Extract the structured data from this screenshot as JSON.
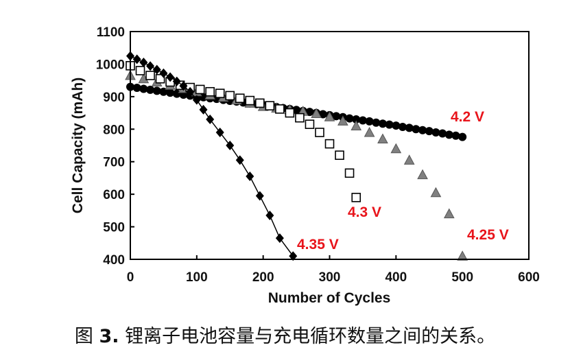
{
  "chart_data": {
    "type": "scatter",
    "xlabel": "Number of Cycles",
    "ylabel": "Cell Capacity (mAh)",
    "xlim": [
      0,
      600
    ],
    "ylim": [
      400,
      1100
    ],
    "xticks": [
      0,
      100,
      200,
      300,
      400,
      500,
      600
    ],
    "yticks": [
      400,
      500,
      600,
      700,
      800,
      900,
      1000,
      1100
    ],
    "grid": false,
    "series": [
      {
        "name": "4.2 V",
        "marker": "circle-filled",
        "color": "#000000",
        "line": false,
        "x": [
          0,
          10,
          20,
          30,
          40,
          50,
          60,
          70,
          80,
          90,
          100,
          110,
          120,
          130,
          140,
          150,
          160,
          170,
          180,
          190,
          200,
          210,
          220,
          230,
          240,
          250,
          260,
          270,
          280,
          290,
          300,
          310,
          320,
          330,
          340,
          350,
          360,
          370,
          380,
          390,
          400,
          410,
          420,
          430,
          440,
          450,
          460,
          470,
          480,
          490,
          500
        ],
        "y": [
          930,
          927,
          924,
          921,
          918,
          915,
          912,
          909,
          906,
          903,
          900,
          898,
          895,
          893,
          890,
          887,
          885,
          882,
          879,
          877,
          874,
          871,
          868,
          865,
          862,
          859,
          856,
          853,
          850,
          846,
          843,
          840,
          837,
          833,
          830,
          827,
          824,
          820,
          817,
          814,
          811,
          807,
          804,
          800,
          797,
          794,
          790,
          787,
          783,
          780,
          776
        ]
      },
      {
        "name": "4.25 V",
        "marker": "triangle-filled",
        "color": "#808080",
        "line": false,
        "x": [
          0,
          20,
          40,
          60,
          80,
          100,
          120,
          140,
          160,
          180,
          200,
          220,
          240,
          260,
          280,
          300,
          320,
          340,
          360,
          380,
          400,
          420,
          440,
          460,
          480,
          500
        ],
        "y": [
          965,
          955,
          945,
          935,
          925,
          915,
          905,
          898,
          890,
          880,
          870,
          865,
          860,
          855,
          848,
          838,
          825,
          810,
          790,
          770,
          740,
          705,
          660,
          605,
          540,
          410
        ]
      },
      {
        "name": "4.3 V",
        "marker": "square-open",
        "color": "#000000",
        "line": false,
        "x": [
          0,
          15,
          30,
          45,
          60,
          75,
          90,
          105,
          120,
          135,
          150,
          165,
          180,
          195,
          210,
          225,
          240,
          255,
          270,
          285,
          300,
          315,
          330,
          340
        ],
        "y": [
          995,
          980,
          965,
          955,
          945,
          935,
          928,
          922,
          915,
          910,
          903,
          895,
          888,
          880,
          872,
          862,
          850,
          835,
          815,
          790,
          755,
          720,
          665,
          590
        ]
      },
      {
        "name": "4.35 V",
        "marker": "diamond-filled",
        "color": "#000000",
        "line": true,
        "x": [
          0,
          10,
          20,
          30,
          40,
          50,
          60,
          70,
          80,
          90,
          100,
          110,
          120,
          135,
          150,
          165,
          180,
          195,
          210,
          225,
          245
        ],
        "y": [
          1025,
          1015,
          1005,
          994,
          983,
          972,
          960,
          947,
          933,
          915,
          890,
          860,
          830,
          790,
          750,
          705,
          655,
          595,
          535,
          465,
          410
        ]
      }
    ],
    "annotations": [
      "4.2 V",
      "4.25 V",
      "4.3 V",
      "4.35 V"
    ]
  },
  "caption": {
    "prefix": "图",
    "number": "3.",
    "text": "锂离子电池容量与充电循环数量之间的关系。"
  }
}
